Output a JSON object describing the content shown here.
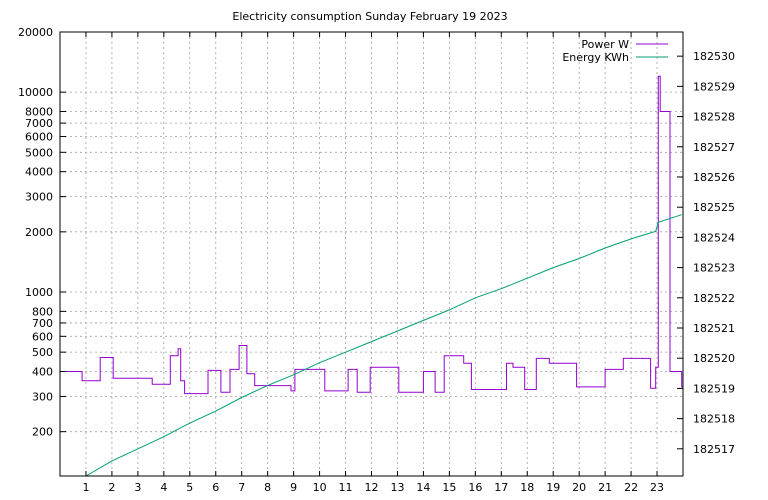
{
  "chart_data": {
    "type": "line",
    "title": "Electricity consumption Sunday February 19 2023",
    "x_ticks": [
      "1",
      "2",
      "3",
      "4",
      "5",
      "6",
      "7",
      "8",
      "9",
      "10",
      "11",
      "12",
      "13",
      "14",
      "15",
      "16",
      "17",
      "18",
      "19",
      "20",
      "21",
      "22",
      "23"
    ],
    "xlim": [
      0,
      24
    ],
    "y_scale": "log",
    "ylim": [
      120,
      20000
    ],
    "y_ticks": [
      200,
      300,
      400,
      500,
      600,
      700,
      800,
      1000,
      2000,
      3000,
      4000,
      5000,
      6000,
      7000,
      8000,
      10000,
      20000
    ],
    "y_tick_labels": [
      "200",
      "300",
      "400",
      "500",
      "600",
      "700",
      "800",
      "1000",
      "2000",
      "3000",
      "4000",
      "5000",
      "6000",
      "7000",
      "8000",
      "10000",
      "20000"
    ],
    "y2lim": [
      182516.1,
      182530.8
    ],
    "y2_ticks": [
      182517,
      182518,
      182519,
      182520,
      182521,
      182522,
      182523,
      182524,
      182525,
      182526,
      182527,
      182528,
      182529,
      182530
    ],
    "y2_tick_labels": [
      "182517",
      "182518",
      "182519",
      "182520",
      "182521",
      "182522",
      "182523",
      "182524",
      "182525",
      "182526",
      "182527",
      "182528",
      "182529",
      "182530"
    ],
    "grid": true,
    "legend_position": "top-right",
    "colors": {
      "power": "#9400d3",
      "energy": "#009e73"
    },
    "series": [
      {
        "name": "Power W",
        "axis": "left",
        "step": true,
        "x": [
          0,
          0.85,
          1.55,
          2.05,
          3.55,
          4.25,
          4.55,
          4.65,
          4.8,
          5.1,
          5.7,
          6.2,
          6.55,
          6.9,
          7.2,
          7.5,
          8.9,
          9.05,
          9.15,
          10.1,
          10.2,
          11.1,
          11.45,
          11.95,
          12.95,
          13.05,
          14.0,
          14.45,
          14.8,
          15.55,
          15.85,
          16.85,
          17.2,
          17.45,
          17.9,
          18.35,
          18.85,
          19.9,
          21.0,
          21.7,
          22.75,
          22.95,
          23.05,
          23.12,
          23.5,
          23.95
        ],
        "y": [
          400,
          360,
          470,
          370,
          345,
          480,
          520,
          360,
          310,
          310,
          405,
          315,
          410,
          540,
          390,
          340,
          320,
          410,
          410,
          410,
          320,
          410,
          315,
          420,
          420,
          315,
          400,
          315,
          480,
          440,
          325,
          325,
          440,
          420,
          325,
          465,
          440,
          335,
          410,
          465,
          330,
          420,
          12000,
          8000,
          400,
          335
        ]
      },
      {
        "name": "Energy KWh",
        "axis": "right",
        "step": false,
        "x": [
          1.0,
          2.0,
          3.0,
          4.0,
          5.0,
          6.0,
          7.0,
          8.0,
          9.0,
          10.0,
          11.0,
          12.0,
          13.0,
          14.0,
          15.0,
          16.0,
          17.0,
          18.0,
          19.0,
          20.0,
          21.0,
          22.0,
          22.95,
          23.05,
          23.95
        ],
        "y": [
          182516.1,
          182516.6,
          182517.0,
          182517.4,
          182517.85,
          182518.25,
          182518.7,
          182519.1,
          182519.45,
          182519.85,
          182520.2,
          182520.55,
          182520.9,
          182521.25,
          182521.6,
          182522.0,
          182522.3,
          182522.65,
          182523.0,
          182523.3,
          182523.65,
          182523.95,
          182524.2,
          182524.5,
          182524.75
        ]
      }
    ]
  }
}
